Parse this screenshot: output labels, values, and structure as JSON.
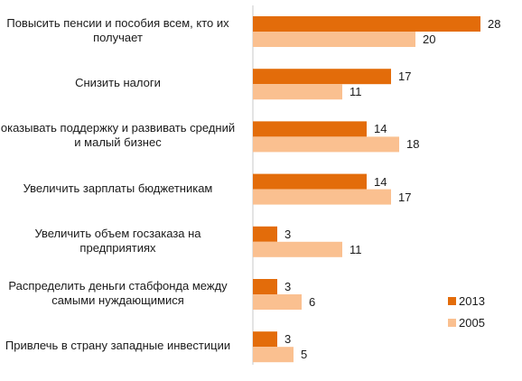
{
  "chart_data": {
    "type": "bar",
    "orientation": "horizontal",
    "categories": [
      "Повысить пенсии и пособия всем, кто их\nполучает",
      "Снизить налоги",
      "оказывать поддержку и развивать средний\nи малый бизнес",
      "Увеличить зарплаты бюджетникам",
      "Увеличить объем госзаказа на\nпредприятиях",
      "Распределить деньги стабфонда между\nсамыми нуждающимися",
      "Привлечь в страну западные инвестиции"
    ],
    "series": [
      {
        "name": "2013",
        "color": "#e36c0a",
        "values": [
          28,
          17,
          14,
          14,
          3,
          3,
          3
        ]
      },
      {
        "name": "2005",
        "color": "#fac090",
        "values": [
          20,
          11,
          18,
          17,
          11,
          6,
          5
        ]
      }
    ],
    "data_labels": true,
    "xlim": [
      0,
      30
    ],
    "grid": false,
    "legend": "bottom-right",
    "title": "",
    "xlabel": "",
    "ylabel": ""
  }
}
